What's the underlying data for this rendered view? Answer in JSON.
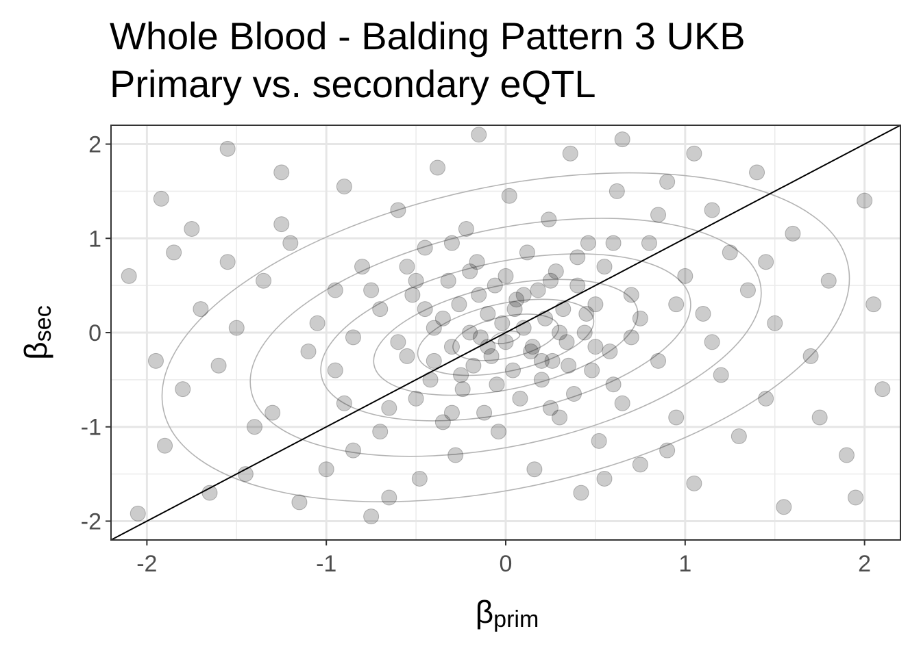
{
  "chart_data": {
    "type": "scatter",
    "title_lines": [
      "Whole Blood - Balding Pattern 3 UKB",
      "Primary vs. secondary eQTL"
    ],
    "xlabel": {
      "symbol": "β",
      "subscript": "prim"
    },
    "ylabel": {
      "symbol": "β",
      "subscript": "sec"
    },
    "xlim": [
      -2.2,
      2.2
    ],
    "ylim": [
      -2.2,
      2.2
    ],
    "x_ticks": [
      -2,
      -1,
      0,
      1,
      2
    ],
    "y_ticks": [
      -2,
      -1,
      0,
      1,
      2
    ],
    "x_tick_labels": [
      "-2",
      "-1",
      "0",
      "1",
      "2"
    ],
    "y_tick_labels": [
      "-2",
      "-1",
      "0",
      "1",
      "2"
    ],
    "grid": true,
    "reference_line": {
      "type": "identity",
      "slope": 1,
      "intercept": 0
    },
    "density_contours": true,
    "point_color": "#000000",
    "point_alpha": 0.2,
    "contour_color": "#b3b3b3",
    "points": [
      [
        -2.05,
        -1.92
      ],
      [
        -1.92,
        1.42
      ],
      [
        -1.85,
        0.85
      ],
      [
        -1.7,
        0.25
      ],
      [
        -1.9,
        -1.2
      ],
      [
        -1.6,
        -0.35
      ],
      [
        -1.55,
        1.95
      ],
      [
        -1.45,
        -1.5
      ],
      [
        -1.35,
        0.55
      ],
      [
        -1.3,
        -0.85
      ],
      [
        -1.25,
        1.15
      ],
      [
        -1.15,
        -1.8
      ],
      [
        -1.05,
        0.1
      ],
      [
        -0.95,
        -0.4
      ],
      [
        -0.9,
        1.55
      ],
      [
        -0.85,
        -1.25
      ],
      [
        -0.8,
        0.7
      ],
      [
        -0.75,
        -1.95
      ],
      [
        -0.7,
        0.25
      ],
      [
        -0.65,
        -0.8
      ],
      [
        -0.6,
        1.3
      ],
      [
        -0.55,
        -0.25
      ],
      [
        -0.52,
        0.4
      ],
      [
        -0.48,
        -1.55
      ],
      [
        -0.45,
        0.9
      ],
      [
        -0.42,
        -0.5
      ],
      [
        -0.4,
        0.05
      ],
      [
        -0.38,
        1.75
      ],
      [
        -0.35,
        -0.95
      ],
      [
        -0.32,
        0.55
      ],
      [
        -0.3,
        -0.15
      ],
      [
        -0.28,
        -1.3
      ],
      [
        -0.26,
        0.3
      ],
      [
        -0.24,
        -0.6
      ],
      [
        -0.22,
        1.1
      ],
      [
        -0.2,
        0.0
      ],
      [
        -0.18,
        -0.35
      ],
      [
        -0.16,
        0.75
      ],
      [
        -0.14,
        -0.05
      ],
      [
        -0.12,
        -0.85
      ],
      [
        -0.1,
        0.2
      ],
      [
        -0.08,
        -0.25
      ],
      [
        -0.06,
        0.5
      ],
      [
        -0.04,
        -1.05
      ],
      [
        -0.02,
        0.1
      ],
      [
        0.0,
        -0.1
      ],
      [
        0.02,
        1.45
      ],
      [
        0.04,
        -0.4
      ],
      [
        0.06,
        0.35
      ],
      [
        0.08,
        -0.7
      ],
      [
        0.1,
        0.05
      ],
      [
        0.12,
        0.85
      ],
      [
        0.14,
        -0.2
      ],
      [
        0.16,
        -1.45
      ],
      [
        0.18,
        0.45
      ],
      [
        0.2,
        -0.5
      ],
      [
        0.22,
        0.15
      ],
      [
        0.24,
        1.2
      ],
      [
        0.26,
        -0.3
      ],
      [
        0.28,
        0.65
      ],
      [
        0.3,
        -0.9
      ],
      [
        0.32,
        0.25
      ],
      [
        0.34,
        -0.1
      ],
      [
        0.36,
        1.9
      ],
      [
        0.38,
        -0.65
      ],
      [
        0.4,
        0.5
      ],
      [
        0.42,
        -1.7
      ],
      [
        0.44,
        0.0
      ],
      [
        0.46,
        0.95
      ],
      [
        0.48,
        -0.4
      ],
      [
        0.5,
        0.3
      ],
      [
        0.52,
        -1.15
      ],
      [
        0.55,
        0.7
      ],
      [
        0.58,
        -0.2
      ],
      [
        0.62,
        1.5
      ],
      [
        0.65,
        -0.75
      ],
      [
        0.7,
        0.4
      ],
      [
        0.75,
        -1.4
      ],
      [
        0.8,
        0.95
      ],
      [
        0.85,
        -0.3
      ],
      [
        0.9,
        1.6
      ],
      [
        0.95,
        -0.9
      ],
      [
        1.0,
        0.6
      ],
      [
        1.05,
        -1.6
      ],
      [
        1.1,
        0.2
      ],
      [
        1.15,
        1.3
      ],
      [
        1.2,
        -0.45
      ],
      [
        1.25,
        0.85
      ],
      [
        1.3,
        -1.1
      ],
      [
        1.35,
        0.45
      ],
      [
        1.4,
        1.7
      ],
      [
        1.45,
        -0.7
      ],
      [
        1.5,
        0.1
      ],
      [
        1.55,
        -1.85
      ],
      [
        1.6,
        1.05
      ],
      [
        1.7,
        -0.25
      ],
      [
        1.8,
        0.55
      ],
      [
        1.9,
        -1.3
      ],
      [
        2.0,
        1.4
      ],
      [
        2.1,
        -0.6
      ],
      [
        -1.8,
        -0.6
      ],
      [
        -1.5,
        0.05
      ],
      [
        -1.2,
        0.95
      ],
      [
        -1.0,
        -1.45
      ],
      [
        -0.85,
        -0.05
      ],
      [
        -0.7,
        -1.05
      ],
      [
        -0.55,
        0.7
      ],
      [
        -0.5,
        -0.7
      ],
      [
        -0.4,
        -0.3
      ],
      [
        -0.3,
        0.95
      ],
      [
        -0.25,
        -0.45
      ],
      [
        -0.15,
        0.4
      ],
      [
        -0.05,
        -0.55
      ],
      [
        0.05,
        0.25
      ],
      [
        0.15,
        -0.15
      ],
      [
        0.25,
        0.55
      ],
      [
        0.35,
        -0.35
      ],
      [
        0.45,
        0.2
      ],
      [
        0.6,
        -0.55
      ],
      [
        0.75,
        0.15
      ],
      [
        -0.6,
        -0.1
      ],
      [
        -0.35,
        0.15
      ],
      [
        -0.1,
        -0.15
      ],
      [
        0.1,
        0.4
      ],
      [
        0.3,
        0.0
      ],
      [
        0.5,
        -0.15
      ],
      [
        -0.45,
        0.25
      ],
      [
        0.2,
        -0.3
      ],
      [
        -2.1,
        0.6
      ],
      [
        -1.95,
        -0.3
      ],
      [
        -1.75,
        1.1
      ],
      [
        -1.4,
        -1.0
      ],
      [
        -1.1,
        -0.2
      ],
      [
        -0.95,
        0.45
      ],
      [
        0.85,
        1.25
      ],
      [
        1.15,
        -0.1
      ],
      [
        1.45,
        0.75
      ],
      [
        1.75,
        -0.9
      ],
      [
        2.05,
        0.3
      ],
      [
        1.95,
        -1.75
      ],
      [
        -1.65,
        -1.7
      ],
      [
        -1.25,
        1.7
      ],
      [
        0.65,
        2.05
      ],
      [
        -0.15,
        2.1
      ],
      [
        -0.65,
        -1.75
      ],
      [
        0.55,
        -1.55
      ],
      [
        1.05,
        1.9
      ],
      [
        -1.55,
        0.75
      ],
      [
        0.9,
        -1.25
      ],
      [
        -0.9,
        -0.75
      ],
      [
        0.7,
        -0.05
      ],
      [
        -0.2,
        0.65
      ],
      [
        0.0,
        0.6
      ],
      [
        0.4,
        0.8
      ],
      [
        -0.5,
        0.55
      ],
      [
        -0.3,
        -0.85
      ],
      [
        0.25,
        -0.8
      ],
      [
        0.6,
        0.95
      ],
      [
        -0.75,
        0.45
      ],
      [
        0.95,
        0.3
      ]
    ]
  }
}
